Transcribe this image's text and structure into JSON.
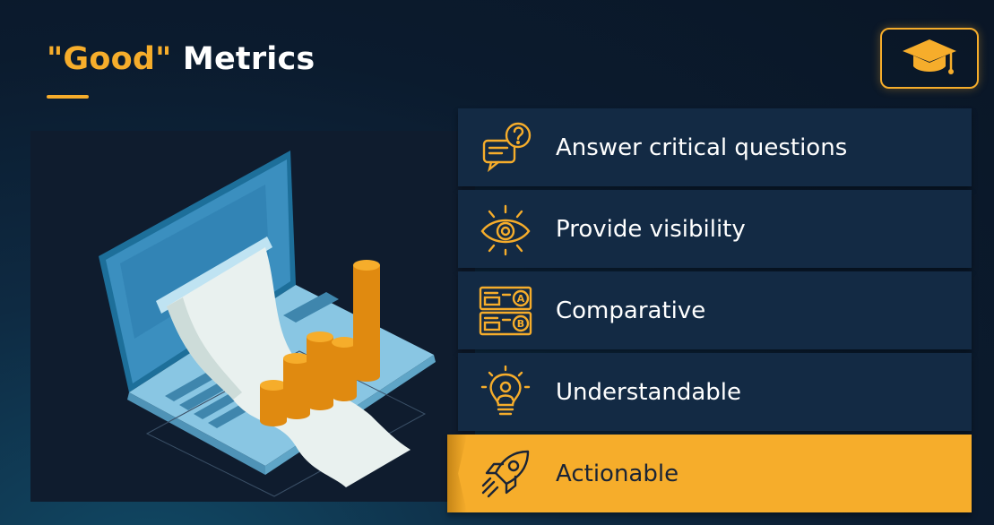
{
  "header": {
    "title_highlight": "\"Good\"",
    "title_rest": " Metrics"
  },
  "badge": {
    "icon": "graduation-cap-icon"
  },
  "illustration": {
    "icon": "laptop-receipt-coins-illustration"
  },
  "metrics": [
    {
      "label": "Answer critical questions",
      "icon": "question-chat-icon"
    },
    {
      "label": "Provide visibility",
      "icon": "eye-icon"
    },
    {
      "label": "Comparative",
      "icon": "ab-compare-icon"
    },
    {
      "label": "Understandable",
      "icon": "lightbulb-person-icon"
    },
    {
      "label": "Actionable",
      "icon": "rocket-icon",
      "active": true
    }
  ],
  "colors": {
    "accent": "#f6ad2b",
    "background": "#0b1b2e",
    "item_bg": "#132a44",
    "active_text": "#1a2436"
  }
}
